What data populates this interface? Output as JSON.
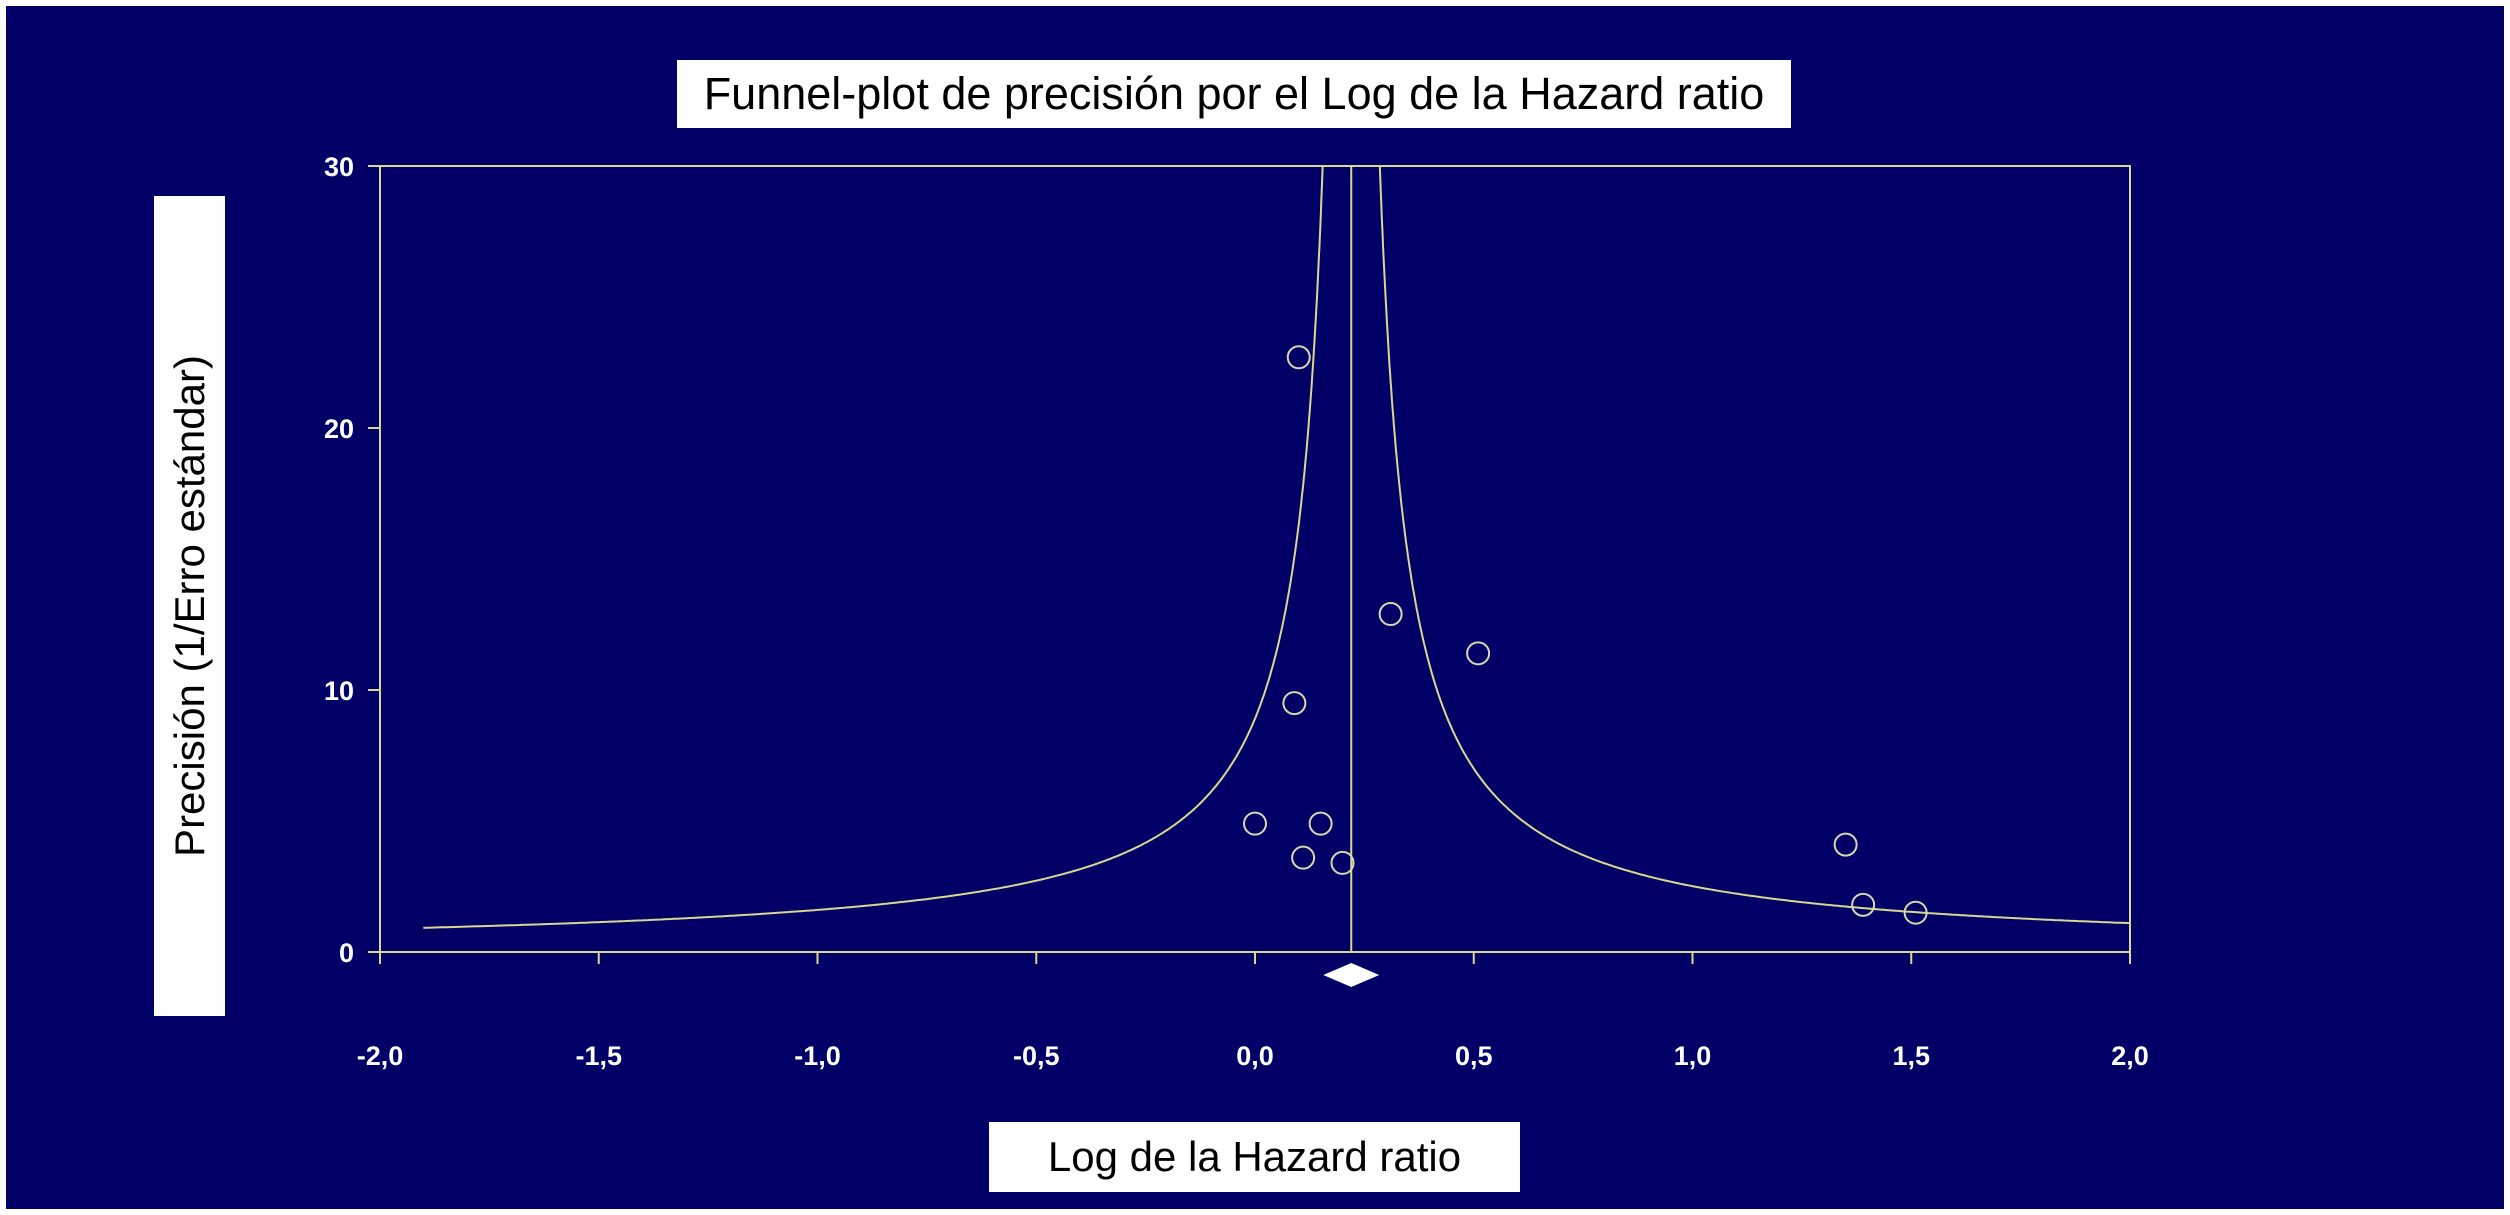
{
  "chart_data": {
    "type": "scatter",
    "title": "Funnel-plot de precisión por el Log de la Hazard ratio",
    "xlabel": "Log de la Hazard ratio",
    "ylabel": "Precisión (1/Erro estándar)",
    "xlim": [
      -2.0,
      2.0
    ],
    "ylim": [
      0,
      30
    ],
    "x_ticks": [
      "-2,0",
      "-1,5",
      "-1,0",
      "-0,5",
      "0,0",
      "0,5",
      "1,0",
      "1,5",
      "2,0"
    ],
    "y_ticks": [
      "0",
      "10",
      "20",
      "30"
    ],
    "grid": false,
    "pooled_estimate": 0.22,
    "funnel_ci_z": 1.96,
    "points": [
      {
        "x": 0.1,
        "y": 22.7
      },
      {
        "x": 0.31,
        "y": 12.9
      },
      {
        "x": 0.51,
        "y": 11.4
      },
      {
        "x": 0.09,
        "y": 9.5
      },
      {
        "x": 0.0,
        "y": 4.9
      },
      {
        "x": 0.15,
        "y": 4.9
      },
      {
        "x": 0.11,
        "y": 3.6
      },
      {
        "x": 0.2,
        "y": 3.4
      },
      {
        "x": 1.35,
        "y": 4.1
      },
      {
        "x": 1.39,
        "y": 1.8
      },
      {
        "x": 1.51,
        "y": 1.5
      }
    ],
    "colors": {
      "background": "#000066",
      "axes": "#d8d890",
      "funnel": "#d8d890",
      "points": "#d8d8b0",
      "tick_text": "#ffffff",
      "label_box": "#ffffff"
    }
  }
}
